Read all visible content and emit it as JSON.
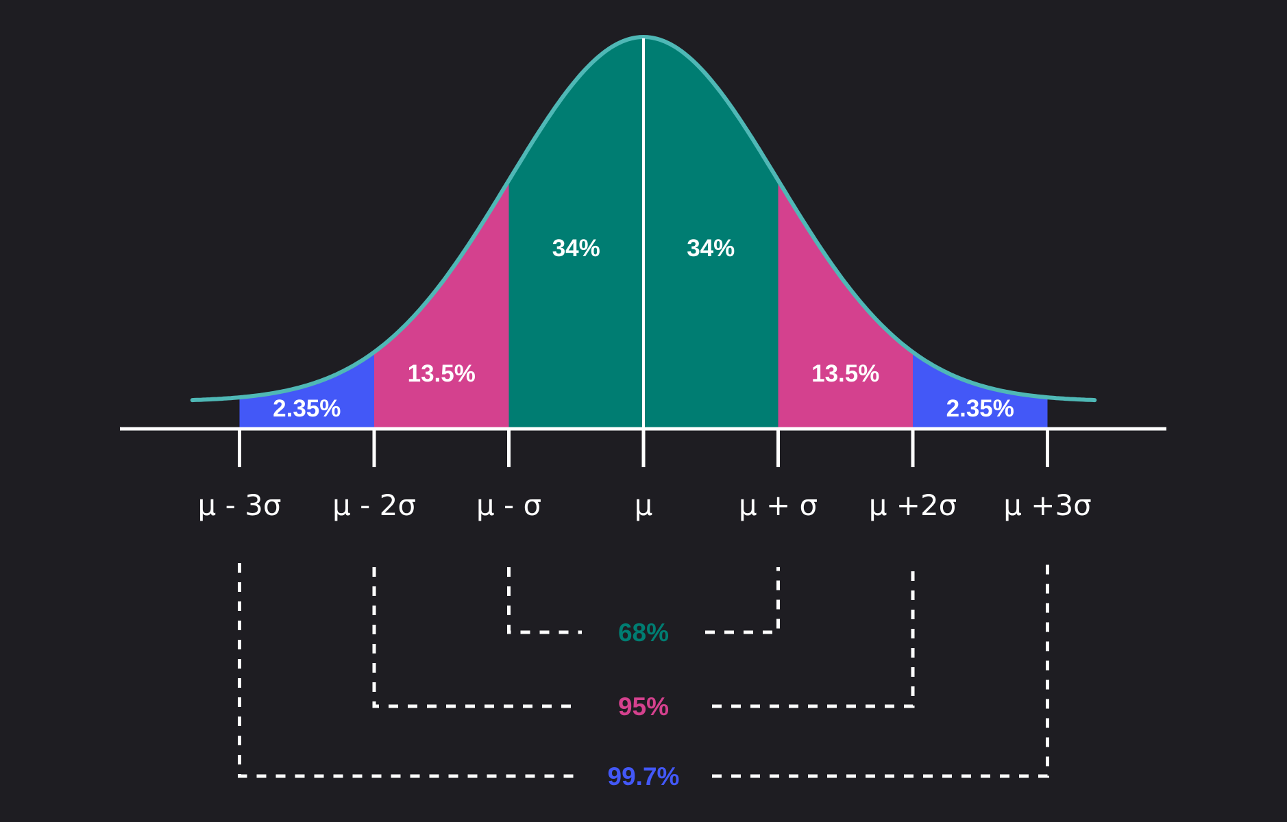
{
  "chart_data": {
    "type": "area",
    "title": "",
    "xlabel": "",
    "ylabel": "",
    "xlim": [
      -3.35,
      3.35
    ],
    "ticks": [
      {
        "value": -3,
        "label": "μ - 3σ"
      },
      {
        "value": -2,
        "label": "μ - 2σ"
      },
      {
        "value": -1,
        "label": "μ -  σ"
      },
      {
        "value": 0,
        "label": "μ"
      },
      {
        "value": 1,
        "label": "μ + σ"
      },
      {
        "value": 2,
        "label": "μ +2σ"
      },
      {
        "value": 3,
        "label": "μ +3σ"
      }
    ],
    "regions": [
      {
        "from": -3,
        "to": -2,
        "label": "2.35%",
        "color": "#4358f7"
      },
      {
        "from": -2,
        "to": -1,
        "label": "13.5%",
        "color": "#d4418e"
      },
      {
        "from": -1,
        "to": 0,
        "label": "34%",
        "color": "#007d72"
      },
      {
        "from": 0,
        "to": 1,
        "label": "34%",
        "color": "#007d72"
      },
      {
        "from": 1,
        "to": 2,
        "label": "13.5%",
        "color": "#d4418e"
      },
      {
        "from": 2,
        "to": 3,
        "label": "2.35%",
        "color": "#4358f7"
      }
    ],
    "coverage": [
      {
        "sigma": 1,
        "label": "68%",
        "color": "#007d72"
      },
      {
        "sigma": 2,
        "label": "95%",
        "color": "#d4418e"
      },
      {
        "sigma": 3,
        "label": "99.7%",
        "color": "#4358f7"
      }
    ],
    "curve_color": "#4fb8b6",
    "axis_color": "#ffffff",
    "background": "#1e1d22",
    "grid": false,
    "legend": "none"
  }
}
